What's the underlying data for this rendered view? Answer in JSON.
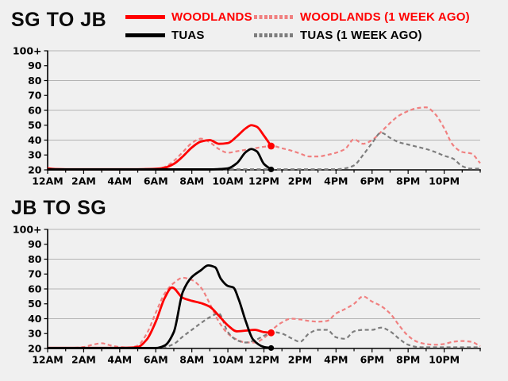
{
  "page": {
    "background_color": "#f0f0f0"
  },
  "legend": {
    "items": [
      {
        "label": "WOODLANDS",
        "swatch_color": "#ff0000",
        "label_color": "#ff0000",
        "line_style": "solid"
      },
      {
        "label": "WOODLANDS (1 WEEK AGO)",
        "swatch_color": "#f08080",
        "label_color": "#ff0000",
        "line_style": "dashed"
      },
      {
        "label": "TUAS",
        "swatch_color": "#000000",
        "label_color": "#000000",
        "line_style": "solid"
      },
      {
        "label": "TUAS (1 WEEK AGO)",
        "swatch_color": "#7d7d7d",
        "label_color": "#000000",
        "line_style": "dashed"
      }
    ]
  },
  "chart_data": [
    {
      "type": "line",
      "title": "SG TO JB",
      "xlim": [
        0,
        24
      ],
      "ylim": [
        20,
        100
      ],
      "x_tick_labels": [
        "12AM",
        "2AM",
        "4AM",
        "6AM",
        "8AM",
        "10AM",
        "12PM",
        "2PM",
        "4PM",
        "6PM",
        "8PM",
        "10PM"
      ],
      "x_tick_hours": [
        0,
        2,
        4,
        6,
        8,
        10,
        12,
        14,
        16,
        18,
        20,
        22
      ],
      "x_minor_tick_step": 1,
      "y_tick_labels": [
        "20",
        "30",
        "40",
        "50",
        "60",
        "70",
        "80",
        "90",
        "100+"
      ],
      "y_tick_values": [
        20,
        30,
        40,
        50,
        60,
        70,
        80,
        90,
        100
      ],
      "gridline_values": [
        40,
        60,
        80,
        100
      ],
      "grid_color": "#b3b3b3",
      "axis_color": "#000000",
      "grid_on": true,
      "legend_position": "top",
      "series": [
        {
          "name": "WOODLANDS (1 WEEK AGO)",
          "color": "#f08080",
          "style": "dashed",
          "width": 2.2,
          "x_start": 0,
          "x_step": 0.5,
          "y": [
            20.4,
            20.4,
            20.4,
            20.4,
            20.4,
            20.4,
            20.4,
            20.4,
            20.4,
            20.4,
            20.4,
            20.4,
            20.6,
            22,
            26,
            32,
            38,
            41,
            38.5,
            34,
            31.5,
            32.5,
            33.5,
            34.5,
            35.5,
            36,
            34.5,
            33,
            31,
            29,
            29,
            30,
            31.5,
            34,
            40.5,
            37.5,
            40,
            45.5,
            51.5,
            56.5,
            59.5,
            61.5,
            62,
            57.5,
            48,
            36.5,
            32,
            31,
            24.5
          ]
        },
        {
          "name": "TUAS (1 WEEK AGO)",
          "color": "#7d7d7d",
          "style": "dashed",
          "width": 2.2,
          "x_start": 0,
          "x_step": 0.5,
          "y": [
            20.4,
            20.4,
            20.4,
            20.4,
            20.4,
            20.4,
            20.4,
            20.4,
            20.4,
            20.4,
            20.4,
            20.4,
            20.4,
            20.4,
            20.4,
            20.4,
            20.4,
            20.4,
            20.4,
            20.4,
            20.4,
            20.4,
            20.4,
            20.4,
            20.4,
            20.4,
            20.4,
            20.4,
            20.4,
            20.4,
            20.4,
            20.4,
            20.4,
            21,
            23,
            30,
            38,
            45,
            41.5,
            38.5,
            37,
            35.5,
            34,
            32,
            29.5,
            27.5,
            22.5,
            20.8,
            20.8
          ]
        },
        {
          "name": "WOODLANDS",
          "color": "#ff0000",
          "style": "solid",
          "width": 2.8,
          "end_marker": true,
          "x": [
            0,
            0.5,
            1,
            1.5,
            2,
            2.5,
            3,
            3.5,
            4,
            4.5,
            5,
            5.5,
            6,
            6.5,
            7,
            7.5,
            8,
            8.5,
            9,
            9.5,
            10,
            10.5,
            11,
            11.3,
            11.6,
            12,
            12.4
          ],
          "y": [
            21,
            20.5,
            20.4,
            20.4,
            20.4,
            20.4,
            20.4,
            20.4,
            20.4,
            20.4,
            20.4,
            20.5,
            20.7,
            21.5,
            24,
            29,
            35,
            39,
            40,
            37.5,
            38,
            42.5,
            48,
            50,
            49,
            43,
            36
          ]
        },
        {
          "name": "TUAS",
          "color": "#000000",
          "style": "solid",
          "width": 2.8,
          "end_marker": true,
          "x": [
            0,
            1,
            2,
            3,
            4,
            5,
            6,
            7,
            8,
            9,
            9.5,
            10,
            10.5,
            11,
            11.3,
            11.6,
            12,
            12.4
          ],
          "y": [
            20.3,
            20.3,
            20.3,
            20.3,
            20.3,
            20.3,
            20.3,
            20.3,
            20.3,
            20.3,
            20.5,
            21,
            24.5,
            32,
            34,
            32.5,
            24,
            20.3
          ]
        }
      ]
    },
    {
      "type": "line",
      "title": "JB TO SG",
      "xlim": [
        0,
        24
      ],
      "ylim": [
        20,
        100
      ],
      "x_tick_labels": [
        "12AM",
        "2AM",
        "4AM",
        "6AM",
        "8AM",
        "10AM",
        "12PM",
        "2PM",
        "4PM",
        "6PM",
        "8PM",
        "10PM"
      ],
      "x_tick_hours": [
        0,
        2,
        4,
        6,
        8,
        10,
        12,
        14,
        16,
        18,
        20,
        22
      ],
      "x_minor_tick_step": 1,
      "y_tick_labels": [
        "20",
        "30",
        "40",
        "50",
        "60",
        "70",
        "80",
        "90",
        "100+"
      ],
      "y_tick_values": [
        20,
        30,
        40,
        50,
        60,
        70,
        80,
        90,
        100
      ],
      "gridline_values": [
        40,
        60,
        80,
        100
      ],
      "grid_color": "#b3b3b3",
      "axis_color": "#000000",
      "grid_on": true,
      "legend_position": "top",
      "series": [
        {
          "name": "WOODLANDS (1 WEEK AGO)",
          "color": "#f08080",
          "style": "dashed",
          "width": 2.2,
          "x_start": 0,
          "x_step": 0.5,
          "y": [
            20.4,
            20.4,
            20.4,
            20.5,
            21,
            22.5,
            23.5,
            22,
            21,
            20.6,
            22,
            30,
            44,
            57,
            64,
            67.5,
            66,
            61,
            50,
            38,
            30,
            26,
            24,
            24,
            27,
            33,
            37.5,
            40,
            39.5,
            38.5,
            38,
            38.5,
            43.5,
            46.5,
            50,
            55,
            51.5,
            48.5,
            43.5,
            35.5,
            28.5,
            24.5,
            23,
            22.5,
            23,
            24.5,
            25,
            24.5,
            21.5
          ]
        },
        {
          "name": "TUAS (1 WEEK AGO)",
          "color": "#7d7d7d",
          "style": "dashed",
          "width": 2.2,
          "x_start": 0,
          "x_step": 0.5,
          "y": [
            20.3,
            20.3,
            20.3,
            20.3,
            20.3,
            20.3,
            20.3,
            20.3,
            20.3,
            20.3,
            20.3,
            20.3,
            20.3,
            21,
            23,
            28,
            32.5,
            37,
            41,
            43.5,
            31,
            25.5,
            24,
            25.5,
            28.5,
            31,
            30,
            27,
            24.5,
            30,
            32.5,
            32.5,
            27.5,
            26.5,
            31.5,
            32.5,
            32.5,
            34,
            31.5,
            26.5,
            22.5,
            21,
            20.8,
            20.8,
            20.8,
            20.8,
            20.8,
            20.8,
            20.8
          ]
        },
        {
          "name": "WOODLANDS",
          "color": "#ff0000",
          "style": "solid",
          "width": 2.8,
          "end_marker": true,
          "x": [
            0,
            1,
            2,
            3,
            4,
            4.5,
            5,
            5.5,
            6,
            6.5,
            6.9,
            7.5,
            8,
            8.5,
            9,
            9.5,
            10,
            10.5,
            11,
            11.5,
            12,
            12.4
          ],
          "y": [
            20.4,
            20.4,
            20.4,
            20.4,
            20.4,
            20.5,
            21,
            26,
            38,
            54,
            61,
            54,
            52,
            50.5,
            48,
            42,
            35.5,
            31.5,
            32,
            32.5,
            31,
            30.5
          ]
        },
        {
          "name": "TUAS",
          "color": "#000000",
          "style": "solid",
          "width": 2.8,
          "end_marker": true,
          "x": [
            0,
            1,
            2,
            3,
            4,
            5,
            6,
            6.5,
            7,
            7.5,
            8,
            8.5,
            8.9,
            9.3,
            9.6,
            10,
            10.3,
            10.6,
            11,
            11.4,
            12,
            12.4
          ],
          "y": [
            20.3,
            20.3,
            20.3,
            20.3,
            20.3,
            20.3,
            20.3,
            22,
            31,
            58,
            68,
            72.5,
            75.8,
            74.5,
            67,
            62,
            61,
            53,
            38,
            26,
            21,
            20.3
          ]
        }
      ]
    }
  ]
}
